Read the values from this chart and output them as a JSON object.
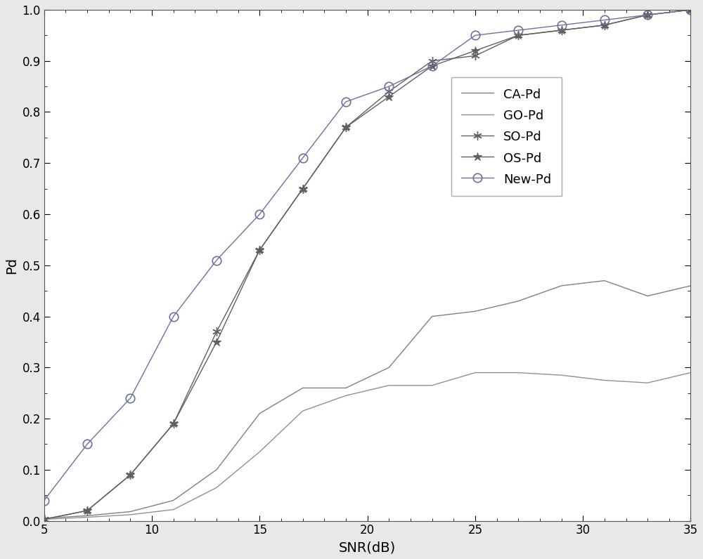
{
  "snr": [
    5,
    7,
    9,
    11,
    13,
    15,
    17,
    19,
    21,
    23,
    25,
    27,
    29,
    31,
    33,
    35
  ],
  "CA_Pd": [
    0.005,
    0.01,
    0.018,
    0.04,
    0.1,
    0.21,
    0.26,
    0.26,
    0.3,
    0.4,
    0.41,
    0.43,
    0.46,
    0.47,
    0.44,
    0.46
  ],
  "GO_Pd": [
    0.003,
    0.007,
    0.012,
    0.022,
    0.065,
    0.135,
    0.215,
    0.245,
    0.265,
    0.265,
    0.29,
    0.29,
    0.285,
    0.275,
    0.27,
    0.29
  ],
  "SO_Pd": [
    0.003,
    0.02,
    0.09,
    0.19,
    0.37,
    0.53,
    0.65,
    0.77,
    0.84,
    0.9,
    0.91,
    0.95,
    0.96,
    0.97,
    0.99,
    1.0
  ],
  "OS_Pd": [
    0.003,
    0.02,
    0.09,
    0.19,
    0.35,
    0.53,
    0.65,
    0.77,
    0.83,
    0.89,
    0.92,
    0.95,
    0.96,
    0.97,
    0.99,
    1.0
  ],
  "New_Pd": [
    0.04,
    0.15,
    0.24,
    0.4,
    0.51,
    0.6,
    0.71,
    0.82,
    0.85,
    0.89,
    0.95,
    0.96,
    0.97,
    0.98,
    0.99,
    1.0
  ],
  "CA_color": "#808080",
  "GO_color": "#909090",
  "SO_color": "#606060",
  "OS_color": "#606060",
  "New_color": "#7070a0",
  "bg_color": "#e8e8e8",
  "xlabel": "SNR(dB)",
  "ylabel": "Pd",
  "xlim": [
    5,
    35
  ],
  "ylim": [
    0,
    1
  ],
  "xticks": [
    5,
    10,
    15,
    20,
    25,
    30,
    35
  ],
  "yticks": [
    0,
    0.1,
    0.2,
    0.3,
    0.4,
    0.5,
    0.6,
    0.7,
    0.8,
    0.9,
    1.0
  ]
}
